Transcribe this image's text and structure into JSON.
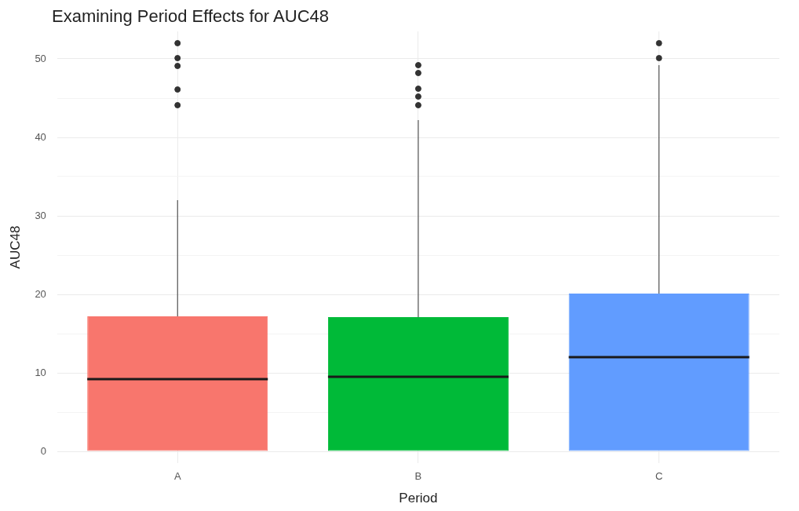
{
  "chart_data": {
    "type": "box",
    "title": "Examining Period Effects for AUC48",
    "xlabel": "Period",
    "ylabel": "AUC48",
    "categories": [
      "A",
      "B",
      "C"
    ],
    "colors": [
      "#f8766d",
      "#00ba38",
      "#619cff"
    ],
    "boxes": [
      {
        "low": 0,
        "q1": 0,
        "median": 9.2,
        "q3": 17.2,
        "high": 32,
        "outliers": [
          44.1,
          46.1,
          49.1,
          50.1,
          52
        ]
      },
      {
        "low": 0,
        "q1": 0,
        "median": 9.5,
        "q3": 17.1,
        "high": 42.2,
        "outliers": [
          44.1,
          45.2,
          46.2,
          48.2,
          49.2
        ]
      },
      {
        "low": 0,
        "q1": 0,
        "median": 12,
        "q3": 20.1,
        "high": 49.2,
        "outliers": [
          50.1,
          52
        ]
      }
    ],
    "ylim": [
      -1.5,
      53.5
    ],
    "yticks": [
      0,
      {
        "value": 5,
        "label": null
      },
      10,
      {
        "value": 15,
        "label": null
      },
      20,
      {
        "value": 25,
        "label": null
      },
      30,
      {
        "value": 35,
        "label": null
      },
      40,
      {
        "value": 45,
        "label": null
      },
      50
    ],
    "grid": true,
    "legend": false
  }
}
